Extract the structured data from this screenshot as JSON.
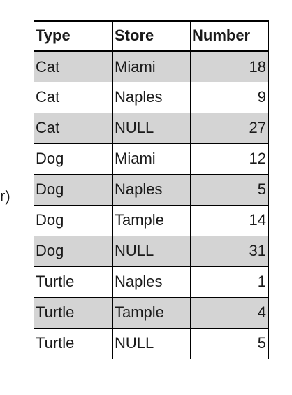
{
  "edge_fragment": "r)",
  "table": {
    "headers": [
      "Type",
      "Store",
      "Number"
    ],
    "rows": [
      {
        "type": "Cat",
        "store": "Miami",
        "number": "18",
        "shaded": true
      },
      {
        "type": "Cat",
        "store": "Naples",
        "number": "9",
        "shaded": false
      },
      {
        "type": "Cat",
        "store": "NULL",
        "number": "27",
        "shaded": true
      },
      {
        "type": "Dog",
        "store": "Miami",
        "number": "12",
        "shaded": false
      },
      {
        "type": "Dog",
        "store": "Naples",
        "number": "5",
        "shaded": true
      },
      {
        "type": "Dog",
        "store": "Tample",
        "number": "14",
        "shaded": false
      },
      {
        "type": "Dog",
        "store": "NULL",
        "number": "31",
        "shaded": true
      },
      {
        "type": "Turtle",
        "store": "Naples",
        "number": "1",
        "shaded": false
      },
      {
        "type": "Turtle",
        "store": "Tample",
        "number": "4",
        "shaded": true
      },
      {
        "type": "Turtle",
        "store": "NULL",
        "number": "5",
        "shaded": false
      }
    ]
  },
  "colors": {
    "shaded_row": "#d4d4d4",
    "border": "#000000"
  }
}
